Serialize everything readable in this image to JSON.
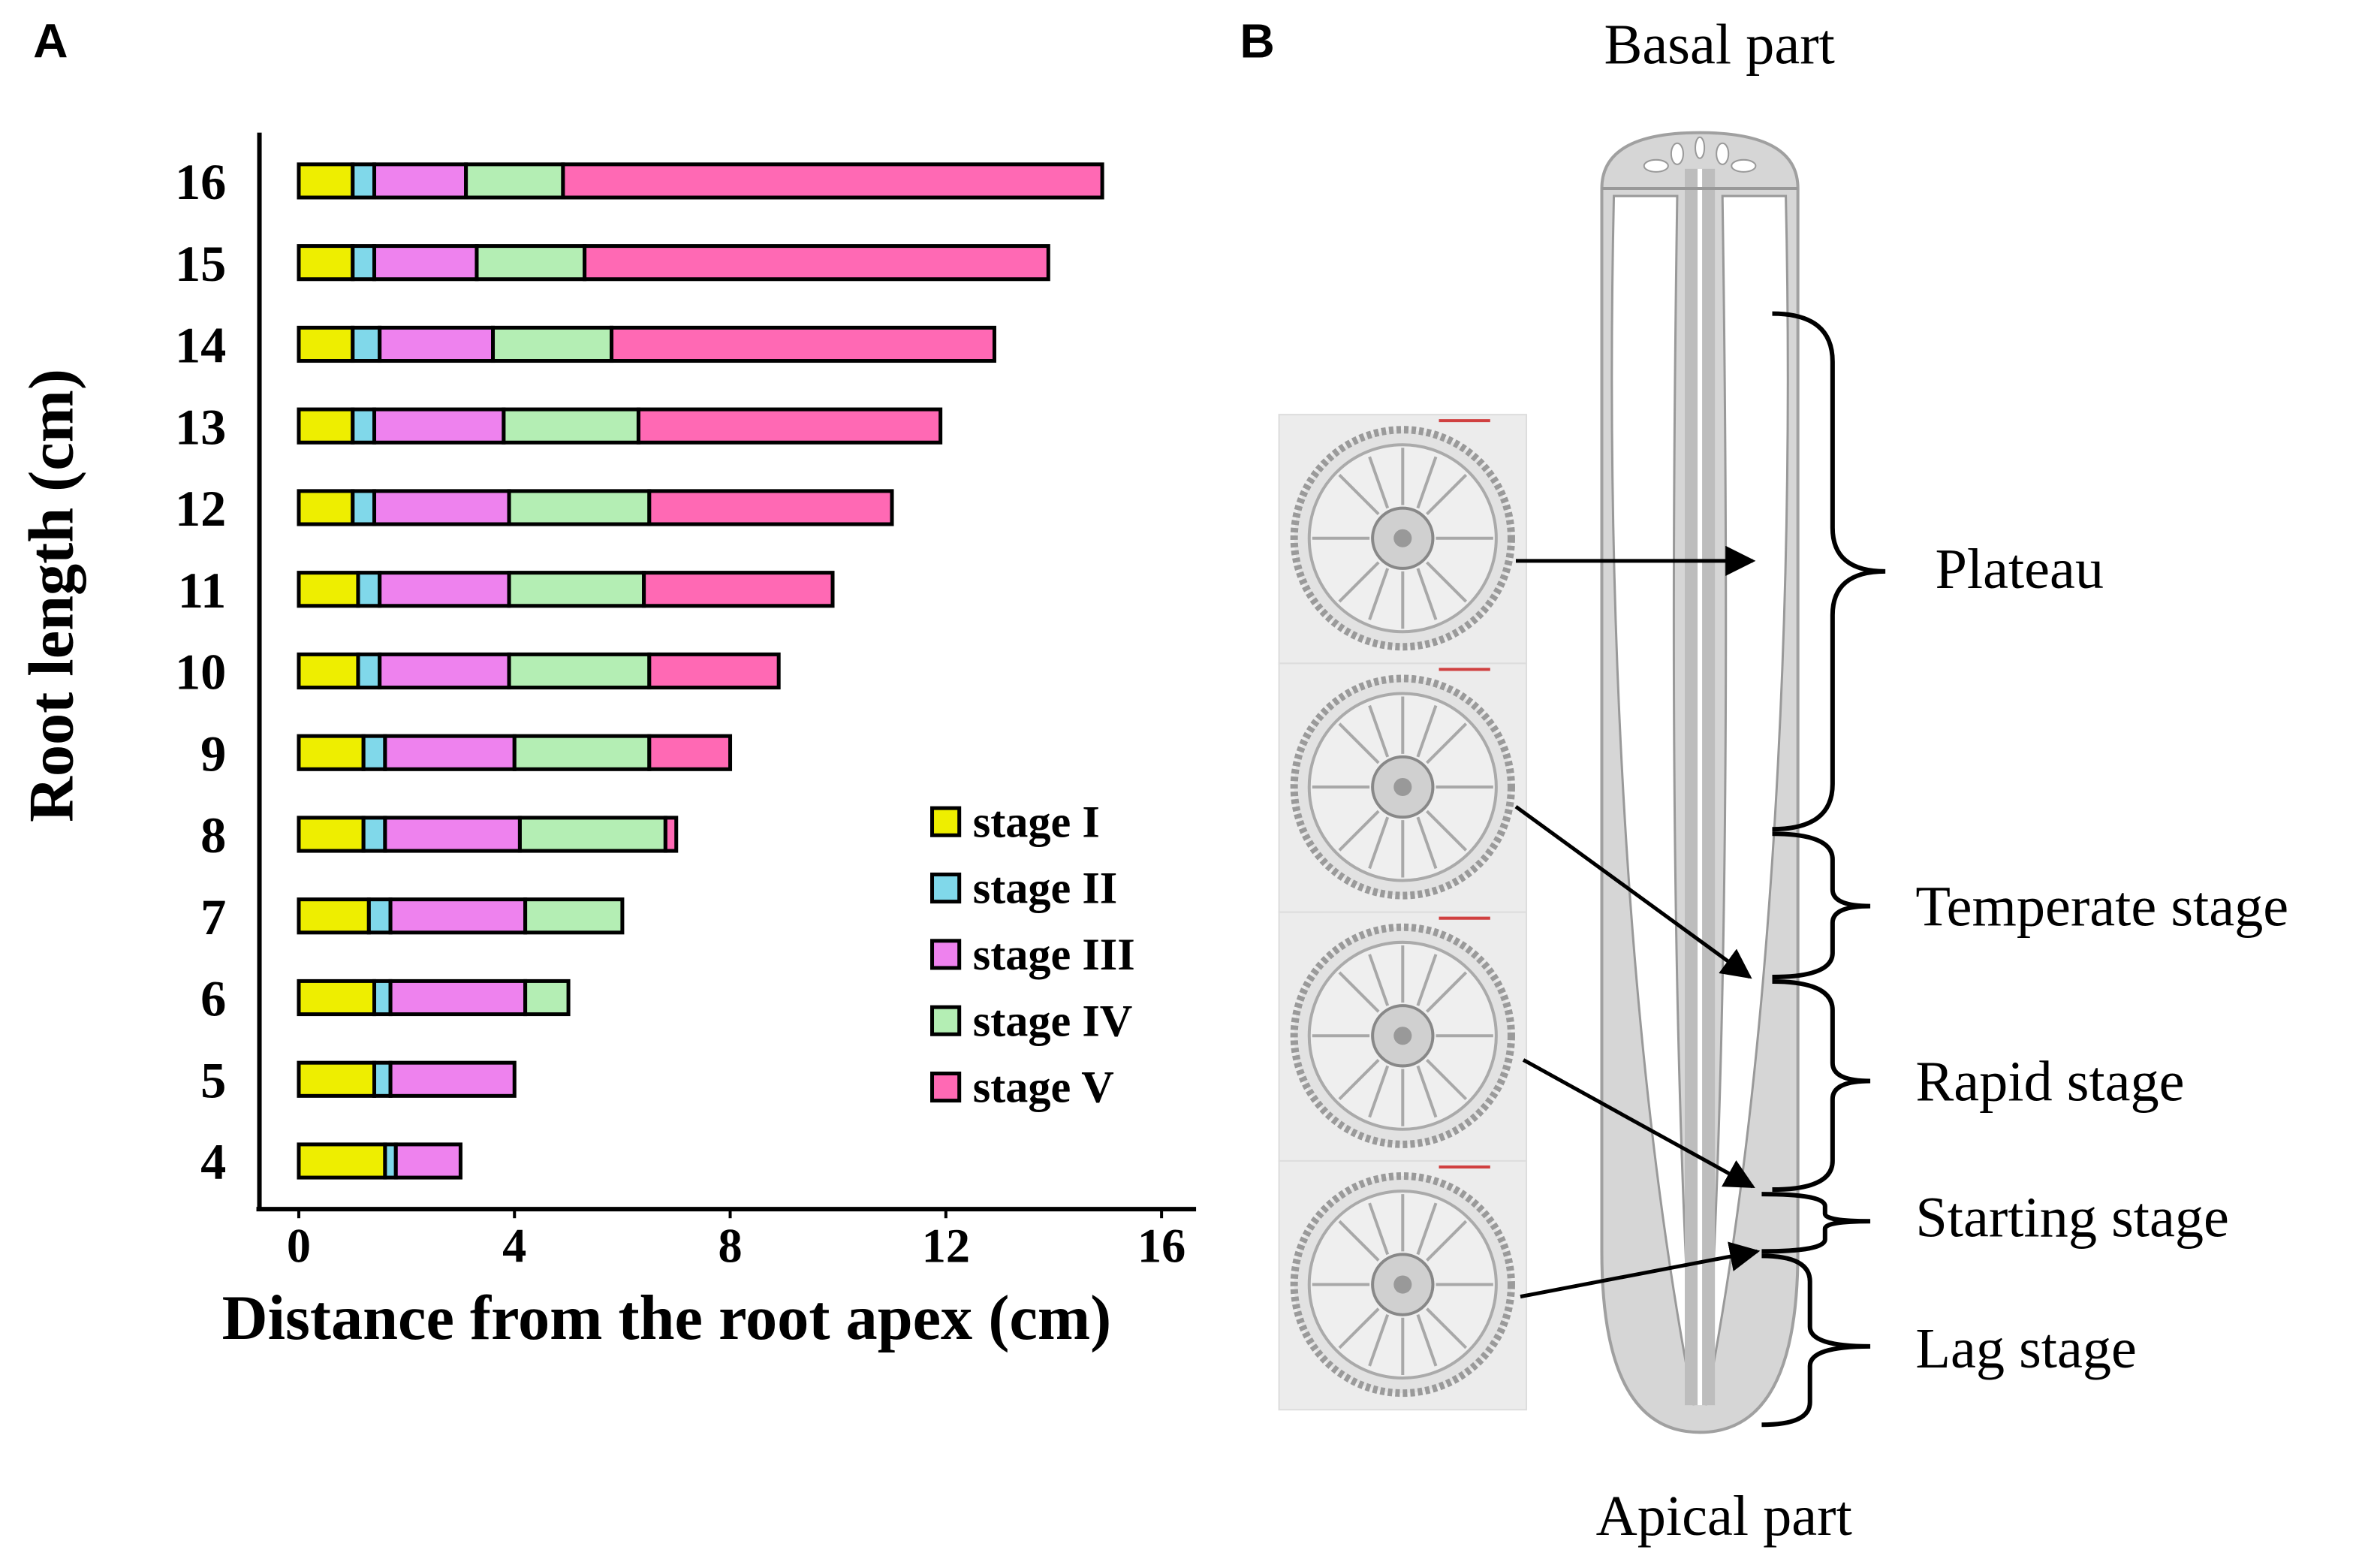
{
  "panel_labels": [
    "A",
    "B"
  ],
  "chart_data": {
    "type": "stacked-bar-horizontal",
    "ylabel": "Root length (cm)",
    "xlabel": "Distance from the root apex (cm)",
    "categories": [
      "16",
      "15",
      "14",
      "13",
      "12",
      "11",
      "10",
      "9",
      "8",
      "7",
      "6",
      "5",
      "4"
    ],
    "series": [
      {
        "name": "stage I",
        "color": "#eeee00",
        "values": [
          1.0,
          1.0,
          1.0,
          1.0,
          1.0,
          1.1,
          1.1,
          1.2,
          1.2,
          1.3,
          1.4,
          1.4,
          1.6
        ]
      },
      {
        "name": "stage II",
        "color": "#80d8ea",
        "values": [
          0.4,
          0.4,
          0.5,
          0.4,
          0.4,
          0.4,
          0.4,
          0.4,
          0.4,
          0.4,
          0.3,
          0.3,
          0.2
        ]
      },
      {
        "name": "stage III",
        "color": "#ee82ee",
        "values": [
          1.7,
          1.9,
          2.1,
          2.4,
          2.5,
          2.4,
          2.4,
          2.4,
          2.5,
          2.5,
          2.5,
          2.3,
          1.2
        ]
      },
      {
        "name": "stage IV",
        "color": "#b4eeb4",
        "values": [
          1.8,
          2.0,
          2.2,
          2.5,
          2.6,
          2.5,
          2.6,
          2.5,
          2.7,
          1.8,
          0.8,
          null,
          null
        ]
      },
      {
        "name": "stage V",
        "color": "#ff69b4",
        "values": [
          10.0,
          8.6,
          7.1,
          5.6,
          4.5,
          3.5,
          2.4,
          1.5,
          0.2,
          null,
          null,
          null,
          null
        ]
      }
    ],
    "xlim": [
      -0.73,
      16.64
    ],
    "xticks": [
      0,
      4,
      8,
      12,
      16
    ],
    "legend": "lower-right"
  },
  "diagram": {
    "top_label": "Basal part",
    "bottom_label": "Apical part",
    "stages": [
      "Plateau",
      "Temperate stage",
      "Rapid stage",
      "Starting stage",
      "Lag stage"
    ]
  }
}
